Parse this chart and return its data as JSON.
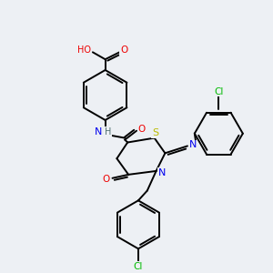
{
  "background_color": "#edf0f4",
  "atom_colors": {
    "C": "#000000",
    "N": "#0000ee",
    "O": "#ee0000",
    "S": "#bbbb00",
    "Cl": "#00bb00",
    "H": "#507070"
  },
  "figsize": [
    3.0,
    3.0
  ],
  "dpi": 100
}
